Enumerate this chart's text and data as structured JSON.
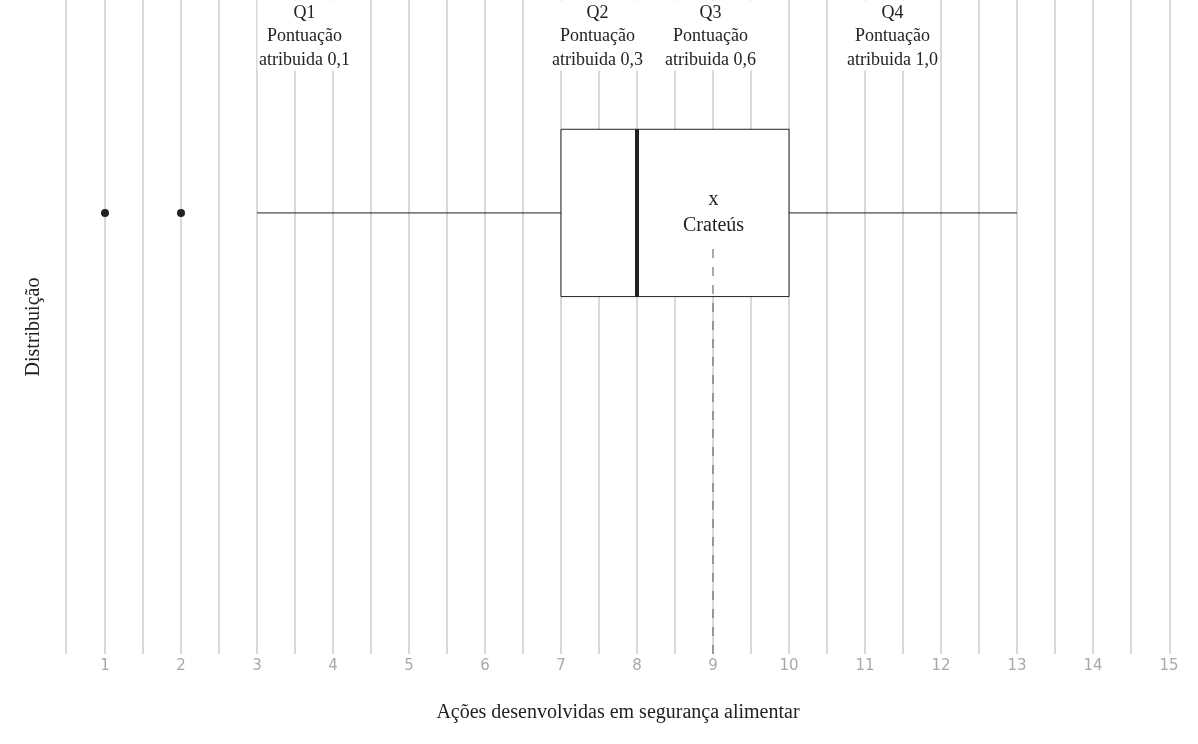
{
  "chart_data": {
    "type": "box",
    "orientation": "horizontal",
    "xlabel": "Ações desenvolvidas em segurança alimentar",
    "ylabel": "Distribuição",
    "categories": [
      null
    ],
    "boxes": [
      {
        "low": 3,
        "q1": 7,
        "median": 8,
        "q3": 10,
        "high": 13,
        "outliers": [
          1,
          2
        ]
      }
    ],
    "color": "#222222",
    "xlim": [
      0.5,
      15
    ],
    "xticks": [
      {
        "value": 0.5,
        "label": null
      },
      1,
      {
        "value": 1.5,
        "label": null
      },
      2,
      {
        "value": 2.5,
        "label": null
      },
      3,
      {
        "value": 3.5,
        "label": null
      },
      4,
      {
        "value": 4.5,
        "label": null
      },
      5,
      {
        "value": 5.5,
        "label": null
      },
      6,
      {
        "value": 6.5,
        "label": null
      },
      7,
      {
        "value": 7.5,
        "label": null
      },
      8,
      {
        "value": 8.5,
        "label": null
      },
      9,
      {
        "value": 9.5,
        "label": null
      },
      10,
      {
        "value": 10.5,
        "label": null
      },
      11,
      {
        "value": 11.5,
        "label": null
      },
      12,
      {
        "value": 12.5,
        "label": null
      },
      13,
      {
        "value": 13.5,
        "label": null
      },
      14,
      {
        "value": 14.5,
        "label": null
      },
      15
    ],
    "grid": "x",
    "tick_labels": "x",
    "ref_lines": [
      {
        "axis": "x",
        "value": 9,
        "label": "x\nCrateús",
        "line_style": "dashed",
        "color": "#555555"
      }
    ],
    "annotations": [
      "Q1\nPontuação\natribuida 0,1",
      "Q2\nPontuação\natribuida 0,3",
      "Q3\nPontuação\natribuida 0,6",
      "Q4\nPontuação\natribuida 1,0"
    ]
  }
}
